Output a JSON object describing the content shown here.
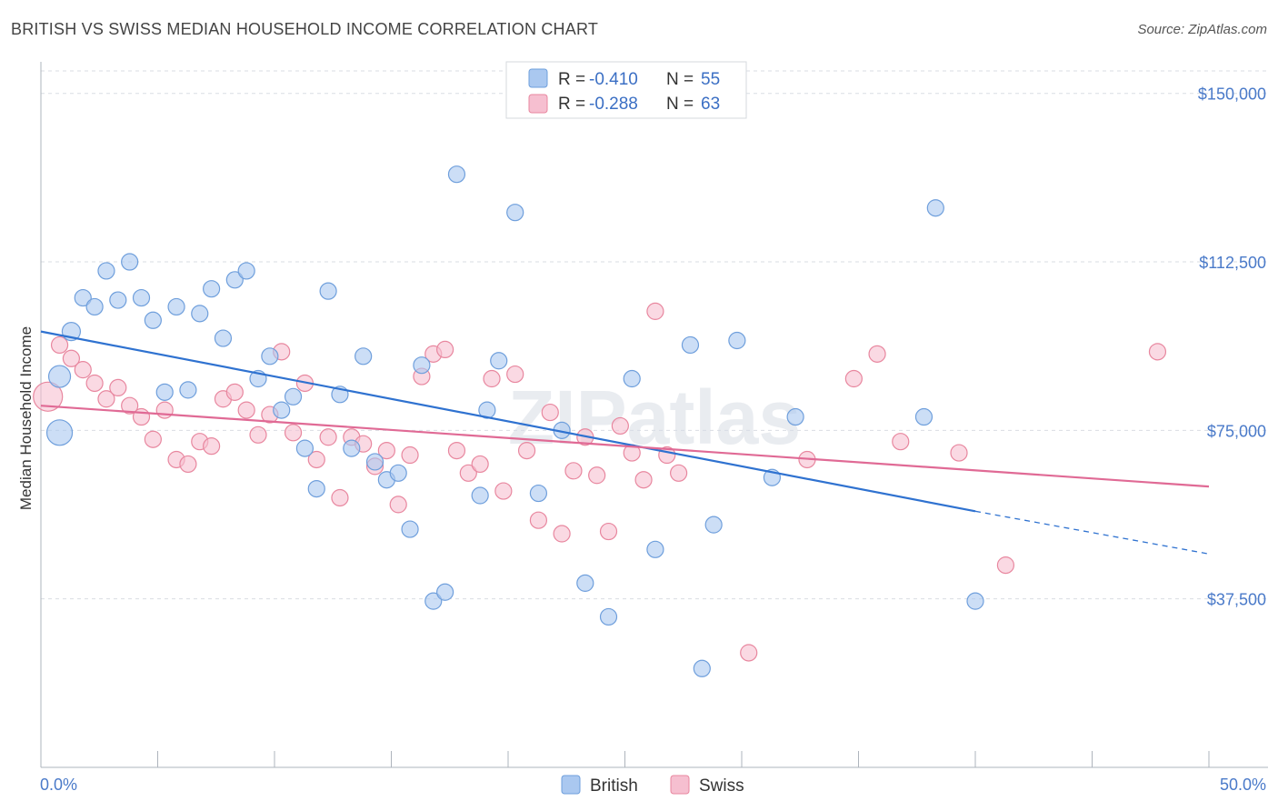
{
  "title": "BRITISH VS SWISS MEDIAN HOUSEHOLD INCOME CORRELATION CHART",
  "source": "Source: ZipAtlas.com",
  "watermark": "ZIPatlas",
  "colors": {
    "british_fill": "#aac8f0",
    "british_stroke": "#6f9fdc",
    "british_line": "#2f72d0",
    "swiss_fill": "#f6bfd0",
    "swiss_stroke": "#e8879f",
    "swiss_line": "#e06a95",
    "grid": "#d9dde3",
    "tick_label": "#4a7ac9"
  },
  "legend": {
    "british": {
      "r_label": "R =",
      "r_value": "-0.410",
      "n_label": "N =",
      "n_value": "55"
    },
    "swiss": {
      "r_label": "R =",
      "r_value": "-0.288",
      "n_label": "N =",
      "n_value": "63"
    }
  },
  "chart_data": {
    "type": "scatter",
    "title": "BRITISH VS SWISS MEDIAN HOUSEHOLD INCOME CORRELATION CHART",
    "xlabel": "",
    "ylabel": "Median Household Income",
    "xlim": [
      0,
      50
    ],
    "ylim": [
      0,
      155000
    ],
    "x_tick_labels": [
      "0.0%",
      "50.0%"
    ],
    "y_ticks": [
      37500,
      75000,
      112500,
      150000
    ],
    "y_tick_labels": [
      "$37,500",
      "$75,000",
      "$112,500",
      "$150,000"
    ],
    "grid": true,
    "legend_position": "top-center",
    "series": [
      {
        "name": "British",
        "trend": {
          "x": [
            0,
            40
          ],
          "y": [
            97000,
            57000
          ],
          "dashed_to": [
            50,
            47500
          ]
        },
        "points": [
          [
            0.8,
            74500,
            14
          ],
          [
            0.8,
            87000,
            12
          ],
          [
            1.3,
            97000,
            10
          ],
          [
            2.8,
            110500,
            9
          ],
          [
            3.8,
            112500,
            9
          ],
          [
            1.8,
            104500,
            9
          ],
          [
            2.3,
            102500,
            9
          ],
          [
            3.3,
            104000,
            9
          ],
          [
            4.3,
            104500,
            9
          ],
          [
            4.8,
            99500,
            9
          ],
          [
            5.3,
            83500,
            9
          ],
          [
            5.8,
            102500,
            9
          ],
          [
            6.3,
            84000,
            9
          ],
          [
            6.8,
            101000,
            9
          ],
          [
            7.3,
            106500,
            9
          ],
          [
            7.8,
            95500,
            9
          ],
          [
            8.3,
            108500,
            9
          ],
          [
            8.8,
            110500,
            9
          ],
          [
            9.3,
            86500,
            9
          ],
          [
            9.8,
            91500,
            9
          ],
          [
            10.3,
            79500,
            9
          ],
          [
            10.8,
            82500,
            9
          ],
          [
            11.3,
            71000,
            9
          ],
          [
            11.8,
            62000,
            9
          ],
          [
            12.3,
            106000,
            9
          ],
          [
            12.8,
            83000,
            9
          ],
          [
            13.3,
            71000,
            9
          ],
          [
            13.8,
            91500,
            9
          ],
          [
            14.3,
            68000,
            9
          ],
          [
            14.8,
            64000,
            9
          ],
          [
            15.3,
            65500,
            9
          ],
          [
            15.8,
            53000,
            9
          ],
          [
            16.3,
            89500,
            9
          ],
          [
            16.8,
            37000,
            9
          ],
          [
            17.3,
            39000,
            9
          ],
          [
            17.8,
            132000,
            9
          ],
          [
            18.8,
            60500,
            9
          ],
          [
            19.1,
            79500,
            9
          ],
          [
            19.6,
            90500,
            9
          ],
          [
            20.3,
            123500,
            9
          ],
          [
            21.3,
            61000,
            9
          ],
          [
            22.3,
            75000,
            9
          ],
          [
            23.3,
            41000,
            9
          ],
          [
            24.3,
            33500,
            9
          ],
          [
            25.3,
            86500,
            9
          ],
          [
            26.3,
            48500,
            9
          ],
          [
            27.8,
            94000,
            9
          ],
          [
            28.3,
            22000,
            9
          ],
          [
            28.8,
            54000,
            9
          ],
          [
            29.8,
            95000,
            9
          ],
          [
            31.3,
            64500,
            9
          ],
          [
            32.3,
            78000,
            9
          ],
          [
            37.8,
            78000,
            9
          ],
          [
            38.3,
            124500,
            9
          ],
          [
            40.0,
            37000,
            9
          ]
        ]
      },
      {
        "name": "Swiss",
        "trend": {
          "x": [
            0,
            50
          ],
          "y": [
            80500,
            62500
          ]
        },
        "points": [
          [
            0.3,
            82500,
            16
          ],
          [
            0.8,
            94000,
            9
          ],
          [
            1.3,
            91000,
            9
          ],
          [
            1.8,
            88500,
            9
          ],
          [
            2.3,
            85500,
            9
          ],
          [
            2.8,
            82000,
            9
          ],
          [
            3.3,
            84500,
            9
          ],
          [
            3.8,
            80500,
            9
          ],
          [
            4.3,
            78000,
            9
          ],
          [
            4.8,
            73000,
            9
          ],
          [
            5.3,
            79500,
            9
          ],
          [
            5.8,
            68500,
            9
          ],
          [
            6.3,
            67500,
            9
          ],
          [
            6.8,
            72500,
            9
          ],
          [
            7.3,
            71500,
            9
          ],
          [
            7.8,
            82000,
            9
          ],
          [
            8.3,
            83500,
            9
          ],
          [
            8.8,
            79500,
            9
          ],
          [
            9.3,
            74000,
            9
          ],
          [
            9.8,
            78500,
            9
          ],
          [
            10.3,
            92500,
            9
          ],
          [
            10.8,
            74500,
            9
          ],
          [
            11.3,
            85500,
            9
          ],
          [
            11.8,
            68500,
            9
          ],
          [
            12.3,
            73500,
            9
          ],
          [
            12.8,
            60000,
            9
          ],
          [
            13.3,
            73500,
            9
          ],
          [
            13.8,
            72000,
            9
          ],
          [
            14.3,
            67000,
            9
          ],
          [
            14.8,
            70500,
            9
          ],
          [
            15.3,
            58500,
            9
          ],
          [
            15.8,
            69500,
            9
          ],
          [
            16.3,
            87000,
            9
          ],
          [
            16.8,
            92000,
            9
          ],
          [
            17.3,
            93000,
            9
          ],
          [
            17.8,
            70500,
            9
          ],
          [
            18.3,
            65500,
            9
          ],
          [
            18.8,
            67500,
            9
          ],
          [
            19.3,
            86500,
            9
          ],
          [
            19.8,
            61500,
            9
          ],
          [
            20.3,
            87500,
            9
          ],
          [
            20.8,
            70500,
            9
          ],
          [
            21.3,
            55000,
            9
          ],
          [
            21.8,
            79000,
            9
          ],
          [
            22.3,
            52000,
            9
          ],
          [
            22.8,
            66000,
            9
          ],
          [
            23.3,
            73500,
            9
          ],
          [
            23.8,
            65000,
            9
          ],
          [
            24.3,
            52500,
            9
          ],
          [
            24.8,
            76000,
            9
          ],
          [
            25.3,
            70000,
            9
          ],
          [
            25.8,
            64000,
            9
          ],
          [
            26.3,
            101500,
            9
          ],
          [
            26.8,
            69500,
            9
          ],
          [
            27.3,
            65500,
            9
          ],
          [
            30.3,
            25500,
            9
          ],
          [
            32.8,
            68500,
            9
          ],
          [
            34.8,
            86500,
            9
          ],
          [
            35.8,
            92000,
            9
          ],
          [
            36.8,
            72500,
            9
          ],
          [
            39.3,
            70000,
            9
          ],
          [
            41.3,
            45000,
            9
          ],
          [
            47.8,
            92500,
            9
          ]
        ]
      }
    ]
  }
}
